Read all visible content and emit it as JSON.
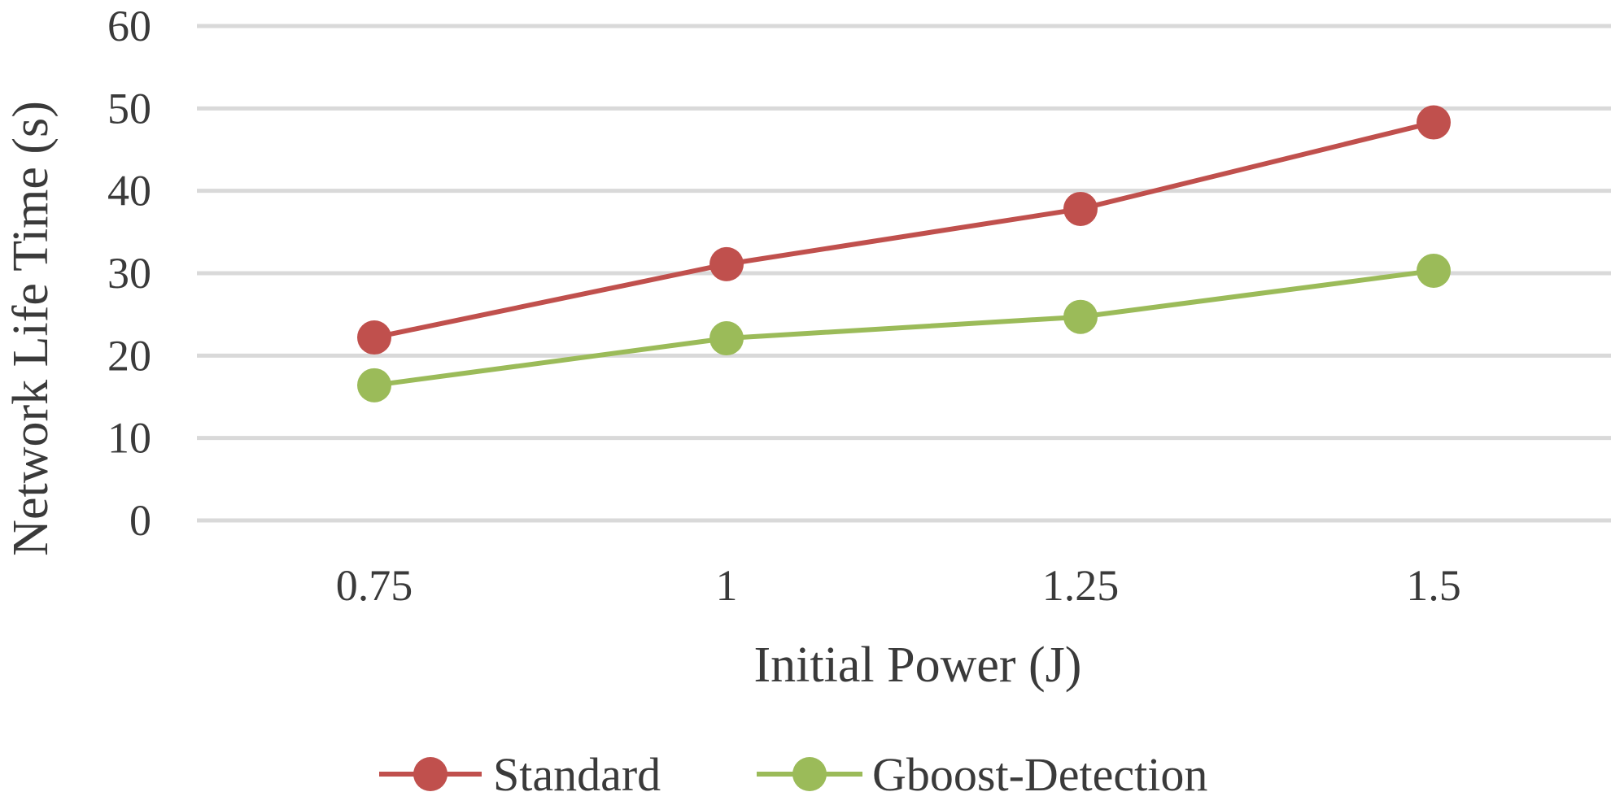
{
  "chart_data": {
    "type": "line",
    "title": "",
    "xlabel": "Initial Power (J)",
    "ylabel": "Network Life Time (s)",
    "x": [
      0.75,
      1,
      1.25,
      1.5
    ],
    "x_tick_labels": [
      "0.75",
      "1",
      "1.25",
      "1.5"
    ],
    "y_ticks": [
      0,
      10,
      20,
      30,
      40,
      50,
      60
    ],
    "ylim": [
      0,
      60
    ],
    "grid": true,
    "legend_position": "bottom",
    "series": [
      {
        "name": "Standard",
        "color": "#c0504d",
        "values": [
          22.2,
          31.1,
          37.8,
          48.3
        ]
      },
      {
        "name": "Gboost-Detection",
        "color": "#9bbb59",
        "values": [
          16.4,
          22.1,
          24.7,
          30.3
        ]
      }
    ]
  }
}
